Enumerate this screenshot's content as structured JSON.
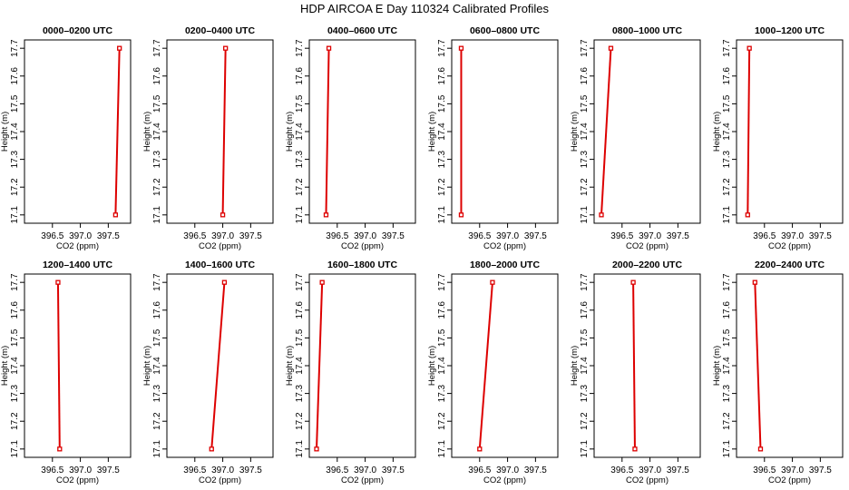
{
  "figure": {
    "title": "HDP AIRCOA E  Day 110324  Calibrated Profiles",
    "series_color": "#dd0000"
  },
  "chart_data": [
    {
      "type": "line",
      "title": "0000–0200 UTC",
      "xlabel": "CO2 (ppm)",
      "ylabel": "Height (m)",
      "xlim": [
        396.0,
        397.9
      ],
      "ylim": [
        17.07,
        17.73
      ],
      "xticks": [
        "396.5",
        "397.0",
        "397.5"
      ],
      "yticks": [
        "17.1",
        "17.2",
        "17.3",
        "17.4",
        "17.5",
        "17.6",
        "17.7"
      ],
      "grid": false,
      "points": [
        {
          "x": 397.63,
          "y": 17.1
        },
        {
          "x": 397.7,
          "y": 17.7
        }
      ]
    },
    {
      "type": "line",
      "title": "0200–0400 UTC",
      "xlabel": "CO2 (ppm)",
      "ylabel": "Height (m)",
      "xlim": [
        396.0,
        397.9
      ],
      "ylim": [
        17.07,
        17.73
      ],
      "xticks": [
        "396.5",
        "397.0",
        "397.5"
      ],
      "yticks": [
        "17.1",
        "17.2",
        "17.3",
        "17.4",
        "17.5",
        "17.6",
        "17.7"
      ],
      "grid": false,
      "points": [
        {
          "x": 397.0,
          "y": 17.1
        },
        {
          "x": 397.05,
          "y": 17.7
        }
      ]
    },
    {
      "type": "line",
      "title": "0400–0600 UTC",
      "xlabel": "CO2 (ppm)",
      "ylabel": "Height (m)",
      "xlim": [
        396.0,
        397.9
      ],
      "ylim": [
        17.07,
        17.73
      ],
      "xticks": [
        "396.5",
        "397.0",
        "397.5"
      ],
      "yticks": [
        "17.1",
        "17.2",
        "17.3",
        "17.4",
        "17.5",
        "17.6",
        "17.7"
      ],
      "grid": false,
      "points": [
        {
          "x": 396.3,
          "y": 17.1
        },
        {
          "x": 396.35,
          "y": 17.7
        }
      ]
    },
    {
      "type": "line",
      "title": "0600–0800 UTC",
      "xlabel": "CO2 (ppm)",
      "ylabel": "Height (m)",
      "xlim": [
        396.0,
        397.9
      ],
      "ylim": [
        17.07,
        17.73
      ],
      "xticks": [
        "396.5",
        "397.0",
        "397.5"
      ],
      "yticks": [
        "17.1",
        "17.2",
        "17.3",
        "17.4",
        "17.5",
        "17.6",
        "17.7"
      ],
      "grid": false,
      "points": [
        {
          "x": 396.17,
          "y": 17.1
        },
        {
          "x": 396.17,
          "y": 17.7
        }
      ]
    },
    {
      "type": "line",
      "title": "0800–1000 UTC",
      "xlabel": "CO2 (ppm)",
      "ylabel": "Height (m)",
      "xlim": [
        396.0,
        397.9
      ],
      "ylim": [
        17.07,
        17.73
      ],
      "xticks": [
        "396.5",
        "397.0",
        "397.5"
      ],
      "yticks": [
        "17.1",
        "17.2",
        "17.3",
        "17.4",
        "17.5",
        "17.6",
        "17.7"
      ],
      "grid": false,
      "points": [
        {
          "x": 396.13,
          "y": 17.1
        },
        {
          "x": 396.3,
          "y": 17.7
        }
      ]
    },
    {
      "type": "line",
      "title": "1000–1200 UTC",
      "xlabel": "CO2 (ppm)",
      "ylabel": "Height (m)",
      "xlim": [
        396.0,
        397.9
      ],
      "ylim": [
        17.07,
        17.73
      ],
      "xticks": [
        "396.5",
        "397.0",
        "397.5"
      ],
      "yticks": [
        "17.1",
        "17.2",
        "17.3",
        "17.4",
        "17.5",
        "17.6",
        "17.7"
      ],
      "grid": false,
      "points": [
        {
          "x": 396.2,
          "y": 17.1
        },
        {
          "x": 396.23,
          "y": 17.7
        }
      ]
    },
    {
      "type": "line",
      "title": "1200–1400 UTC",
      "xlabel": "CO2 (ppm)",
      "ylabel": "Height (m)",
      "xlim": [
        396.0,
        397.9
      ],
      "ylim": [
        17.07,
        17.73
      ],
      "xticks": [
        "396.5",
        "397.0",
        "397.5"
      ],
      "yticks": [
        "17.1",
        "17.2",
        "17.3",
        "17.4",
        "17.5",
        "17.6",
        "17.7"
      ],
      "grid": false,
      "points": [
        {
          "x": 396.63,
          "y": 17.1
        },
        {
          "x": 396.6,
          "y": 17.7
        }
      ]
    },
    {
      "type": "line",
      "title": "1400–1600 UTC",
      "xlabel": "CO2 (ppm)",
      "ylabel": "Height (m)",
      "xlim": [
        396.0,
        397.9
      ],
      "ylim": [
        17.07,
        17.73
      ],
      "xticks": [
        "396.5",
        "397.0",
        "397.5"
      ],
      "yticks": [
        "17.1",
        "17.2",
        "17.3",
        "17.4",
        "17.5",
        "17.6",
        "17.7"
      ],
      "grid": false,
      "points": [
        {
          "x": 396.8,
          "y": 17.1
        },
        {
          "x": 397.03,
          "y": 17.7
        }
      ]
    },
    {
      "type": "line",
      "title": "1600–1800 UTC",
      "xlabel": "CO2 (ppm)",
      "ylabel": "Height (m)",
      "xlim": [
        396.0,
        397.9
      ],
      "ylim": [
        17.07,
        17.73
      ],
      "xticks": [
        "396.5",
        "397.0",
        "397.5"
      ],
      "yticks": [
        "17.1",
        "17.2",
        "17.3",
        "17.4",
        "17.5",
        "17.6",
        "17.7"
      ],
      "grid": false,
      "points": [
        {
          "x": 396.13,
          "y": 17.1
        },
        {
          "x": 396.23,
          "y": 17.7
        }
      ]
    },
    {
      "type": "line",
      "title": "1800–2000 UTC",
      "xlabel": "CO2 (ppm)",
      "ylabel": "Height (m)",
      "xlim": [
        396.0,
        397.9
      ],
      "ylim": [
        17.07,
        17.73
      ],
      "xticks": [
        "396.5",
        "397.0",
        "397.5"
      ],
      "yticks": [
        "17.1",
        "17.2",
        "17.3",
        "17.4",
        "17.5",
        "17.6",
        "17.7"
      ],
      "grid": false,
      "points": [
        {
          "x": 396.5,
          "y": 17.1
        },
        {
          "x": 396.73,
          "y": 17.7
        }
      ]
    },
    {
      "type": "line",
      "title": "2000–2200 UTC",
      "xlabel": "CO2 (ppm)",
      "ylabel": "Height (m)",
      "xlim": [
        396.0,
        397.9
      ],
      "ylim": [
        17.07,
        17.73
      ],
      "xticks": [
        "396.5",
        "397.0",
        "397.5"
      ],
      "yticks": [
        "17.1",
        "17.2",
        "17.3",
        "17.4",
        "17.5",
        "17.6",
        "17.7"
      ],
      "grid": false,
      "points": [
        {
          "x": 396.73,
          "y": 17.1
        },
        {
          "x": 396.7,
          "y": 17.7
        }
      ]
    },
    {
      "type": "line",
      "title": "2200–2400 UTC",
      "xlabel": "CO2 (ppm)",
      "ylabel": "Height (m)",
      "xlim": [
        396.0,
        397.9
      ],
      "ylim": [
        17.07,
        17.73
      ],
      "xticks": [
        "396.5",
        "397.0",
        "397.5"
      ],
      "yticks": [
        "17.1",
        "17.2",
        "17.3",
        "17.4",
        "17.5",
        "17.6",
        "17.7"
      ],
      "grid": false,
      "points": [
        {
          "x": 396.43,
          "y": 17.1
        },
        {
          "x": 396.33,
          "y": 17.7
        }
      ]
    }
  ]
}
